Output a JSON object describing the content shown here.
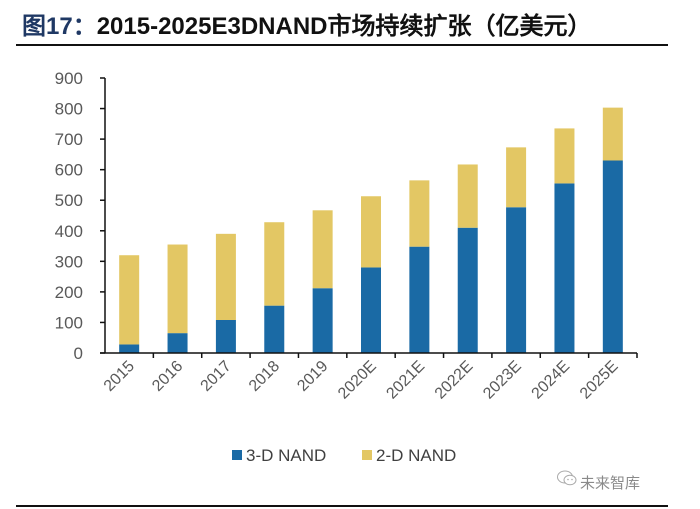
{
  "title": {
    "prefix": "图17：",
    "text": "2015-2025E3DNAND市场持续扩张（亿美元）"
  },
  "watermark": "未来智库",
  "chart_data": {
    "type": "bar",
    "stacked": true,
    "title": "2015-2025E3DNAND市场持续扩张（亿美元）",
    "xlabel": "",
    "ylabel": "",
    "categories": [
      "2015",
      "2016",
      "2017",
      "2018",
      "2019",
      "2020E",
      "2021E",
      "2022E",
      "2023E",
      "2024E",
      "2025E"
    ],
    "series": [
      {
        "name": "3-D NAND",
        "color": "#1a6aa5",
        "values": [
          28,
          65,
          108,
          155,
          212,
          280,
          348,
          410,
          477,
          555,
          630
        ]
      },
      {
        "name": "2-D NAND",
        "color": "#e3c764",
        "values": [
          292,
          290,
          282,
          273,
          255,
          233,
          217,
          207,
          196,
          180,
          173
        ]
      }
    ],
    "totals": [
      320,
      355,
      390,
      428,
      467,
      513,
      565,
      617,
      673,
      735,
      803
    ],
    "ylim": [
      0,
      900
    ],
    "yticks": [
      0,
      100,
      200,
      300,
      400,
      500,
      600,
      700,
      800,
      900
    ],
    "grid": false,
    "legend": "bottom-center"
  }
}
